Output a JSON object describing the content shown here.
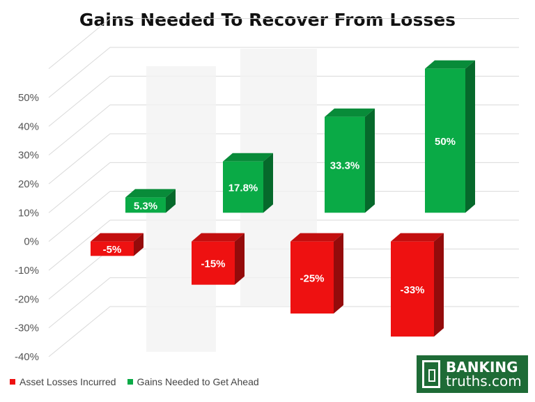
{
  "chart_data": {
    "type": "bar",
    "title": "Gains Needed To Recover From Losses",
    "categories": [
      "-5%",
      "-15%",
      "-25%",
      "-33%"
    ],
    "y_ticks": [
      "50%",
      "40%",
      "30%",
      "20%",
      "10%",
      "0%",
      "-10%",
      "-20%",
      "-30%",
      "-40%"
    ],
    "ylim": [
      -40,
      50
    ],
    "series": [
      {
        "name": "Asset Losses Incurred",
        "values": [
          -5,
          -15,
          -25,
          -33
        ],
        "labels": [
          "-5%",
          "-15%",
          "-25%",
          "-33%"
        ],
        "color": "#ee1111"
      },
      {
        "name": "Gains Needed to Get Ahead",
        "values": [
          5.3,
          17.8,
          33.3,
          50
        ],
        "labels": [
          "5.3%",
          "17.8%",
          "33.3%",
          "50%"
        ],
        "color": "#0aaa46"
      }
    ],
    "grid": true,
    "legend_position": "bottom-left",
    "style": "3d"
  },
  "logo": {
    "line1": "BANKING",
    "line2": "truths.com"
  }
}
